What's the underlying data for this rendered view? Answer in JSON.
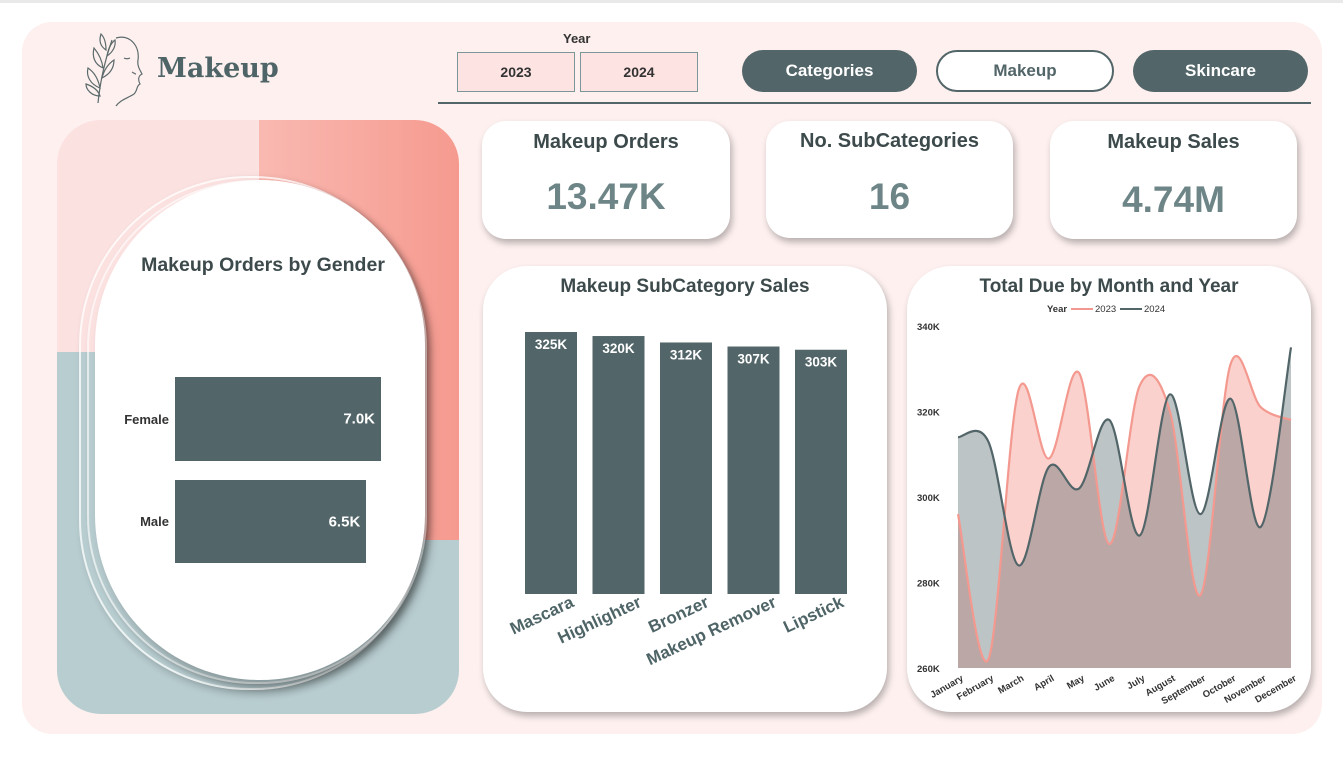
{
  "header": {
    "brand": "Makeup",
    "year_label": "Year",
    "years": [
      "2023",
      "2024"
    ],
    "nav": [
      "Categories",
      "Makeup",
      "Skincare"
    ]
  },
  "kpis": [
    {
      "title": "Makeup Orders",
      "value": "13.47K"
    },
    {
      "title": "No. SubCategories",
      "value": "16"
    },
    {
      "title": "Makeup Sales",
      "value": "4.74M"
    }
  ],
  "colors": {
    "dark": "#526568",
    "accent_pink": "#f4998f",
    "light_pink": "#fde3e2",
    "blue_gray": "#b8cdd0"
  },
  "chart_data": [
    {
      "type": "bar",
      "title": "Makeup Orders by Gender",
      "orientation": "horizontal",
      "categories": [
        "Female",
        "Male"
      ],
      "values": [
        7.0,
        6.5
      ],
      "data_labels": [
        "7.0K",
        "6.5K"
      ],
      "xlim": [
        0,
        7.0
      ]
    },
    {
      "type": "bar",
      "title": "Makeup SubCategory Sales",
      "categories": [
        "Mascara",
        "Highlighter",
        "Bronzer",
        "Makeup Remover",
        "Lipstick"
      ],
      "values": [
        325,
        320,
        312,
        307,
        303
      ],
      "data_labels": [
        "325K",
        "320K",
        "312K",
        "307K",
        "303K"
      ],
      "ylim": [
        0,
        325
      ]
    },
    {
      "type": "area",
      "title": "Total Due by Month and Year",
      "legend_title": "Year",
      "legend_position": "top",
      "categories": [
        "January",
        "February",
        "March",
        "April",
        "May",
        "June",
        "July",
        "August",
        "September",
        "October",
        "November",
        "December"
      ],
      "series": [
        {
          "name": "2023",
          "color": "#f4998f",
          "values": [
            296,
            262,
            325,
            309,
            329,
            289,
            326,
            320,
            277,
            331,
            321,
            318
          ]
        },
        {
          "name": "2024",
          "color": "#526568",
          "values": [
            314,
            313,
            284,
            307,
            302,
            318,
            291,
            324,
            296,
            323,
            293,
            335
          ]
        }
      ],
      "y_ticks": [
        "340K",
        "320K",
        "300K",
        "280K",
        "260K"
      ],
      "ylim": [
        260,
        340
      ]
    }
  ]
}
